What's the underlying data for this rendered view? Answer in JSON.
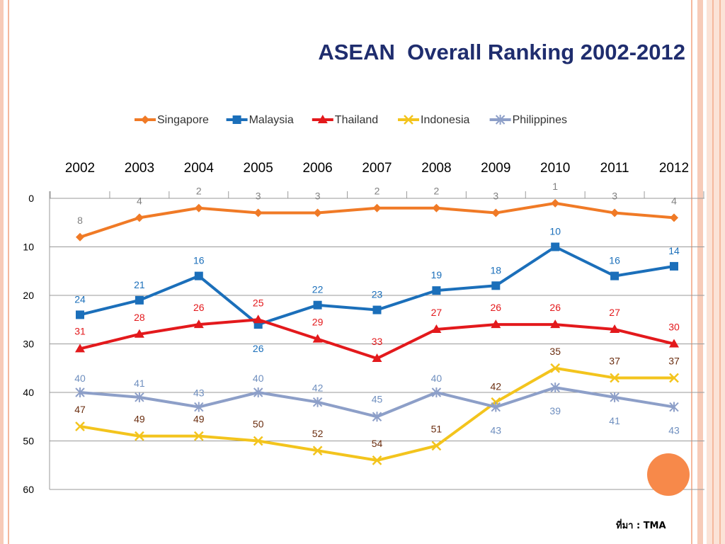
{
  "slide": {
    "title": "ASEAN  Overall Ranking 2002-2012",
    "source": "ที่มา : TMA"
  },
  "colors": {
    "stripe": "#f7cbb8",
    "accent_dot": "#f7894a",
    "title": "#1f2d6e"
  },
  "chart_data": {
    "type": "line",
    "title": "",
    "x": [
      "2002",
      "2003",
      "2004",
      "2005",
      "2006",
      "2007",
      "2008",
      "2009",
      "2010",
      "2011",
      "2012"
    ],
    "y_axis": {
      "reversed": true,
      "ylim": [
        0,
        60
      ],
      "ticks": [
        0,
        10,
        20,
        30,
        40,
        50,
        60
      ]
    },
    "grid": true,
    "legend_position": "top",
    "series": [
      {
        "name": "Singapore",
        "color": "#f07a26",
        "label_color": "#808080",
        "marker": "diamond",
        "values": [
          8,
          4,
          2,
          3,
          3,
          2,
          2,
          3,
          1,
          3,
          4
        ]
      },
      {
        "name": "Malaysia",
        "color": "#1b6fba",
        "label_color": "#1b6fba",
        "marker": "square",
        "values": [
          24,
          21,
          16,
          26,
          22,
          23,
          19,
          18,
          10,
          16,
          14
        ]
      },
      {
        "name": "Thailand",
        "color": "#e3191c",
        "label_color": "#e3191c",
        "marker": "triangle",
        "values": [
          31,
          28,
          26,
          25,
          29,
          33,
          27,
          26,
          26,
          27,
          30
        ]
      },
      {
        "name": "Indonesia",
        "color": "#f3c41d",
        "label_color": "#6b2e10",
        "marker": "x",
        "values": [
          47,
          49,
          49,
          50,
          52,
          54,
          51,
          42,
          35,
          37,
          37
        ]
      },
      {
        "name": "Philippines",
        "color": "#8d9fc8",
        "label_color": "#6f8fbf",
        "marker": "star",
        "values": [
          40,
          41,
          43,
          40,
          42,
          45,
          40,
          43,
          39,
          41,
          43
        ]
      }
    ]
  }
}
